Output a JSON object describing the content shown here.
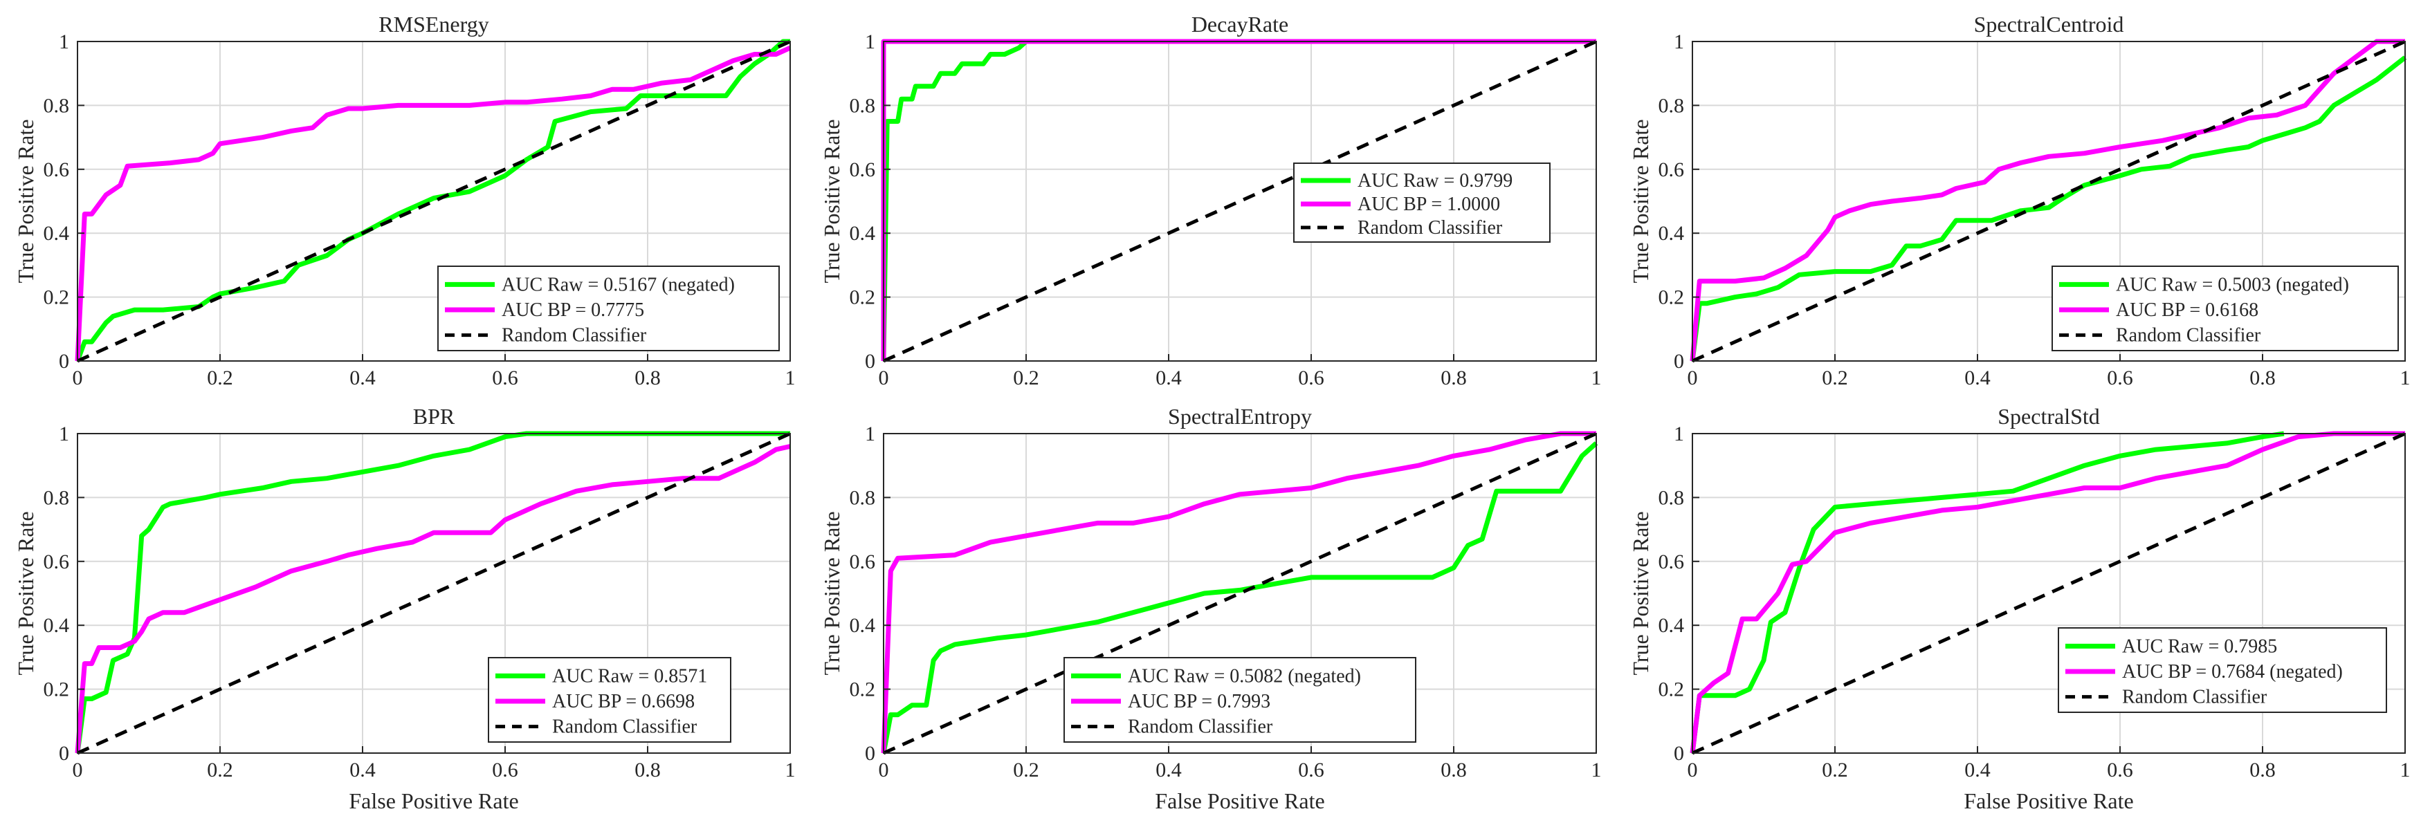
{
  "figure": {
    "background": "#ffffff"
  },
  "colors": {
    "raw": "#00ff00",
    "bp": "#ff00ff",
    "random": "#000000",
    "grid": "#d9d9d9",
    "axis": "#262626"
  },
  "chart_data": [
    {
      "type": "line",
      "title": "RMSEnergy",
      "xlabel": "",
      "ylabel": "True Positive Rate",
      "xlim": [
        0,
        1
      ],
      "ylim": [
        0,
        1
      ],
      "xticks": [
        "0",
        "0.2",
        "0.4",
        "0.6",
        "0.8",
        "1"
      ],
      "yticks": [
        "0",
        "0.2",
        "0.4",
        "0.6",
        "0.8",
        "1"
      ],
      "grid": true,
      "legend_position": "bottom-right",
      "series": [
        {
          "name": "AUC Raw = 0.5167 (negated)",
          "color": "#00ff00",
          "x": [
            0,
            0.01,
            0.02,
            0.04,
            0.05,
            0.08,
            0.12,
            0.17,
            0.19,
            0.2,
            0.25,
            0.29,
            0.31,
            0.35,
            0.38,
            0.4,
            0.45,
            0.5,
            0.55,
            0.6,
            0.63,
            0.66,
            0.67,
            0.72,
            0.77,
            0.79,
            0.82,
            0.86,
            0.88,
            0.91,
            0.93,
            0.95,
            0.97,
            0.99,
            1.0
          ],
          "y": [
            0,
            0.06,
            0.06,
            0.12,
            0.14,
            0.16,
            0.16,
            0.17,
            0.2,
            0.21,
            0.23,
            0.25,
            0.3,
            0.33,
            0.38,
            0.4,
            0.46,
            0.51,
            0.53,
            0.58,
            0.63,
            0.67,
            0.75,
            0.78,
            0.79,
            0.83,
            0.83,
            0.83,
            0.83,
            0.83,
            0.89,
            0.93,
            0.96,
            1.0,
            1.0
          ]
        },
        {
          "name": "AUC BP = 0.7775",
          "color": "#ff00ff",
          "x": [
            0,
            0.01,
            0.02,
            0.04,
            0.06,
            0.07,
            0.13,
            0.17,
            0.19,
            0.2,
            0.23,
            0.26,
            0.3,
            0.33,
            0.35,
            0.38,
            0.4,
            0.45,
            0.5,
            0.55,
            0.6,
            0.63,
            0.68,
            0.72,
            0.75,
            0.78,
            0.82,
            0.86,
            0.88,
            0.9,
            0.92,
            0.95,
            0.98,
            1.0
          ],
          "y": [
            0,
            0.46,
            0.46,
            0.52,
            0.55,
            0.61,
            0.62,
            0.63,
            0.65,
            0.68,
            0.69,
            0.7,
            0.72,
            0.73,
            0.77,
            0.79,
            0.79,
            0.8,
            0.8,
            0.8,
            0.81,
            0.81,
            0.82,
            0.83,
            0.85,
            0.85,
            0.87,
            0.88,
            0.9,
            0.92,
            0.94,
            0.96,
            0.96,
            0.98
          ]
        },
        {
          "name": "Random Classifier",
          "color": "#000000",
          "dashed": true,
          "x": [
            0,
            1
          ],
          "y": [
            0,
            1
          ]
        }
      ]
    },
    {
      "type": "line",
      "title": "DecayRate",
      "xlabel": "",
      "ylabel": "True Positive Rate",
      "xlim": [
        0,
        1
      ],
      "ylim": [
        0,
        1
      ],
      "xticks": [
        "0",
        "0.2",
        "0.4",
        "0.6",
        "0.8",
        "1"
      ],
      "yticks": [
        "0",
        "0.2",
        "0.4",
        "0.6",
        "0.8",
        "1"
      ],
      "grid": true,
      "legend_position": "center-right",
      "series": [
        {
          "name": "AUC Raw = 0.9799",
          "color": "#00ff00",
          "x": [
            0,
            0.005,
            0.02,
            0.025,
            0.04,
            0.045,
            0.07,
            0.08,
            0.1,
            0.11,
            0.14,
            0.15,
            0.17,
            0.19,
            0.2
          ],
          "y": [
            0,
            0.75,
            0.75,
            0.82,
            0.82,
            0.86,
            0.86,
            0.9,
            0.9,
            0.93,
            0.93,
            0.96,
            0.96,
            0.98,
            1.0
          ]
        },
        {
          "name": "AUC BP = 1.0000",
          "color": "#ff00ff",
          "x": [
            0,
            0,
            1
          ],
          "y": [
            0,
            1,
            1
          ]
        },
        {
          "name": "Random Classifier",
          "color": "#000000",
          "dashed": true,
          "x": [
            0,
            1
          ],
          "y": [
            0,
            1
          ]
        }
      ]
    },
    {
      "type": "line",
      "title": "SpectralCentroid",
      "xlabel": "",
      "ylabel": "True Positive Rate",
      "xlim": [
        0,
        1
      ],
      "ylim": [
        0,
        1
      ],
      "xticks": [
        "0",
        "0.2",
        "0.4",
        "0.6",
        "0.8",
        "1"
      ],
      "yticks": [
        "0",
        "0.2",
        "0.4",
        "0.6",
        "0.8",
        "1"
      ],
      "grid": true,
      "legend_position": "bottom-right",
      "series": [
        {
          "name": "AUC Raw = 0.5003 (negated)",
          "color": "#00ff00",
          "x": [
            0,
            0.01,
            0.02,
            0.06,
            0.09,
            0.12,
            0.15,
            0.2,
            0.25,
            0.28,
            0.3,
            0.32,
            0.35,
            0.37,
            0.42,
            0.46,
            0.5,
            0.52,
            0.55,
            0.6,
            0.63,
            0.67,
            0.7,
            0.75,
            0.78,
            0.8,
            0.83,
            0.86,
            0.88,
            0.9,
            0.93,
            0.96,
            1.0
          ],
          "y": [
            0,
            0.18,
            0.18,
            0.2,
            0.21,
            0.23,
            0.27,
            0.28,
            0.28,
            0.3,
            0.36,
            0.36,
            0.38,
            0.44,
            0.44,
            0.47,
            0.48,
            0.51,
            0.55,
            0.58,
            0.6,
            0.61,
            0.64,
            0.66,
            0.67,
            0.69,
            0.71,
            0.73,
            0.75,
            0.8,
            0.84,
            0.88,
            0.95
          ]
        },
        {
          "name": "AUC BP = 0.6168",
          "color": "#ff00ff",
          "x": [
            0,
            0.01,
            0.06,
            0.1,
            0.13,
            0.16,
            0.19,
            0.2,
            0.22,
            0.25,
            0.28,
            0.32,
            0.35,
            0.37,
            0.41,
            0.43,
            0.46,
            0.5,
            0.55,
            0.6,
            0.63,
            0.66,
            0.7,
            0.74,
            0.78,
            0.82,
            0.86,
            0.88,
            0.9,
            0.93,
            0.96,
            1.0
          ],
          "y": [
            0,
            0.25,
            0.25,
            0.26,
            0.29,
            0.33,
            0.41,
            0.45,
            0.47,
            0.49,
            0.5,
            0.51,
            0.52,
            0.54,
            0.56,
            0.6,
            0.62,
            0.64,
            0.65,
            0.67,
            0.68,
            0.69,
            0.71,
            0.73,
            0.76,
            0.77,
            0.8,
            0.85,
            0.9,
            0.95,
            1.0,
            1.0
          ]
        },
        {
          "name": "Random Classifier",
          "color": "#000000",
          "dashed": true,
          "x": [
            0,
            1
          ],
          "y": [
            0,
            1
          ]
        }
      ]
    },
    {
      "type": "line",
      "title": "BPR",
      "xlabel": "False Positive Rate",
      "ylabel": "True Positive Rate",
      "xlim": [
        0,
        1
      ],
      "ylim": [
        0,
        1
      ],
      "xticks": [
        "0",
        "0.2",
        "0.4",
        "0.6",
        "0.8",
        "1"
      ],
      "yticks": [
        "0",
        "0.2",
        "0.4",
        "0.6",
        "0.8",
        "1"
      ],
      "grid": true,
      "legend_position": "bottom-right",
      "series": [
        {
          "name": "AUC Raw = 0.8571",
          "color": "#00ff00",
          "x": [
            0,
            0.01,
            0.02,
            0.04,
            0.05,
            0.07,
            0.08,
            0.09,
            0.1,
            0.12,
            0.13,
            0.18,
            0.2,
            0.23,
            0.26,
            0.3,
            0.35,
            0.4,
            0.45,
            0.5,
            0.55,
            0.6,
            0.63,
            0.7,
            0.75,
            0.8,
            0.9,
            1.0
          ],
          "y": [
            0,
            0.17,
            0.17,
            0.19,
            0.29,
            0.31,
            0.36,
            0.68,
            0.7,
            0.77,
            0.78,
            0.8,
            0.81,
            0.82,
            0.83,
            0.85,
            0.86,
            0.88,
            0.9,
            0.93,
            0.95,
            0.99,
            1.0,
            1.0,
            1.0,
            1.0,
            1.0,
            1.0
          ]
        },
        {
          "name": "AUC BP = 0.6698",
          "color": "#ff00ff",
          "x": [
            0,
            0.01,
            0.02,
            0.03,
            0.05,
            0.06,
            0.08,
            0.09,
            0.1,
            0.12,
            0.15,
            0.2,
            0.25,
            0.3,
            0.35,
            0.38,
            0.42,
            0.47,
            0.5,
            0.55,
            0.58,
            0.6,
            0.65,
            0.7,
            0.75,
            0.8,
            0.85,
            0.9,
            0.95,
            0.98,
            1.0
          ],
          "y": [
            0,
            0.28,
            0.28,
            0.33,
            0.33,
            0.33,
            0.35,
            0.38,
            0.42,
            0.44,
            0.44,
            0.48,
            0.52,
            0.57,
            0.6,
            0.62,
            0.64,
            0.66,
            0.69,
            0.69,
            0.69,
            0.73,
            0.78,
            0.82,
            0.84,
            0.85,
            0.86,
            0.86,
            0.91,
            0.95,
            0.96
          ]
        },
        {
          "name": "Random Classifier",
          "color": "#000000",
          "dashed": true,
          "x": [
            0,
            1
          ],
          "y": [
            0,
            1
          ]
        }
      ]
    },
    {
      "type": "line",
      "title": "SpectralEntropy",
      "xlabel": "False Positive Rate",
      "ylabel": "True Positive Rate",
      "xlim": [
        0,
        1
      ],
      "ylim": [
        0,
        1
      ],
      "xticks": [
        "0",
        "0.2",
        "0.4",
        "0.6",
        "0.8",
        "1"
      ],
      "yticks": [
        "0",
        "0.2",
        "0.4",
        "0.6",
        "0.8",
        "1"
      ],
      "grid": true,
      "legend_position": "bottom-right",
      "series": [
        {
          "name": "AUC Raw = 0.5082 (negated)",
          "color": "#00ff00",
          "x": [
            0,
            0.01,
            0.02,
            0.04,
            0.06,
            0.07,
            0.08,
            0.1,
            0.13,
            0.16,
            0.2,
            0.25,
            0.3,
            0.35,
            0.4,
            0.45,
            0.5,
            0.55,
            0.6,
            0.7,
            0.77,
            0.8,
            0.82,
            0.84,
            0.86,
            0.9,
            0.95,
            0.98,
            1.0
          ],
          "y": [
            0,
            0.12,
            0.12,
            0.15,
            0.15,
            0.29,
            0.32,
            0.34,
            0.35,
            0.36,
            0.37,
            0.39,
            0.41,
            0.44,
            0.47,
            0.5,
            0.51,
            0.53,
            0.55,
            0.55,
            0.55,
            0.58,
            0.65,
            0.67,
            0.82,
            0.82,
            0.82,
            0.93,
            0.97
          ]
        },
        {
          "name": "AUC BP = 0.7993",
          "color": "#ff00ff",
          "x": [
            0,
            0.01,
            0.02,
            0.1,
            0.15,
            0.2,
            0.25,
            0.3,
            0.35,
            0.4,
            0.45,
            0.5,
            0.55,
            0.6,
            0.65,
            0.7,
            0.75,
            0.8,
            0.85,
            0.9,
            0.95,
            1.0
          ],
          "y": [
            0,
            0.57,
            0.61,
            0.62,
            0.66,
            0.68,
            0.7,
            0.72,
            0.72,
            0.74,
            0.78,
            0.81,
            0.82,
            0.83,
            0.86,
            0.88,
            0.9,
            0.93,
            0.95,
            0.98,
            1.0,
            1.0
          ]
        },
        {
          "name": "Random Classifier",
          "color": "#000000",
          "dashed": true,
          "x": [
            0,
            1
          ],
          "y": [
            0,
            1
          ]
        }
      ]
    },
    {
      "type": "line",
      "title": "SpectralStd",
      "xlabel": "False Positive Rate",
      "ylabel": "True Positive Rate",
      "xlim": [
        0,
        1
      ],
      "ylim": [
        0,
        1
      ],
      "xticks": [
        "0",
        "0.2",
        "0.4",
        "0.6",
        "0.8",
        "1"
      ],
      "yticks": [
        "0",
        "0.2",
        "0.4",
        "0.6",
        "0.8",
        "1"
      ],
      "grid": true,
      "legend_position": "bottom-right",
      "series": [
        {
          "name": "AUC Raw = 0.7985",
          "color": "#00ff00",
          "x": [
            0,
            0.01,
            0.06,
            0.08,
            0.1,
            0.11,
            0.13,
            0.15,
            0.17,
            0.2,
            0.25,
            0.3,
            0.35,
            0.4,
            0.45,
            0.5,
            0.55,
            0.6,
            0.65,
            0.7,
            0.75,
            0.8,
            0.83
          ],
          "y": [
            0,
            0.18,
            0.18,
            0.2,
            0.29,
            0.41,
            0.44,
            0.58,
            0.7,
            0.77,
            0.78,
            0.79,
            0.8,
            0.81,
            0.82,
            0.86,
            0.9,
            0.93,
            0.95,
            0.96,
            0.97,
            0.99,
            1.0
          ]
        },
        {
          "name": "AUC BP = 0.7684 (negated)",
          "color": "#ff00ff",
          "x": [
            0,
            0.01,
            0.03,
            0.05,
            0.07,
            0.09,
            0.12,
            0.14,
            0.16,
            0.2,
            0.25,
            0.3,
            0.35,
            0.4,
            0.45,
            0.5,
            0.55,
            0.6,
            0.65,
            0.7,
            0.75,
            0.8,
            0.85,
            0.9,
            1.0
          ],
          "y": [
            0,
            0.18,
            0.22,
            0.25,
            0.42,
            0.42,
            0.5,
            0.59,
            0.6,
            0.69,
            0.72,
            0.74,
            0.76,
            0.77,
            0.79,
            0.81,
            0.83,
            0.83,
            0.86,
            0.88,
            0.9,
            0.95,
            0.99,
            1.0,
            1.0
          ]
        },
        {
          "name": "Random Classifier",
          "color": "#000000",
          "dashed": true,
          "x": [
            0,
            1
          ],
          "y": [
            0,
            1
          ]
        }
      ]
    }
  ]
}
